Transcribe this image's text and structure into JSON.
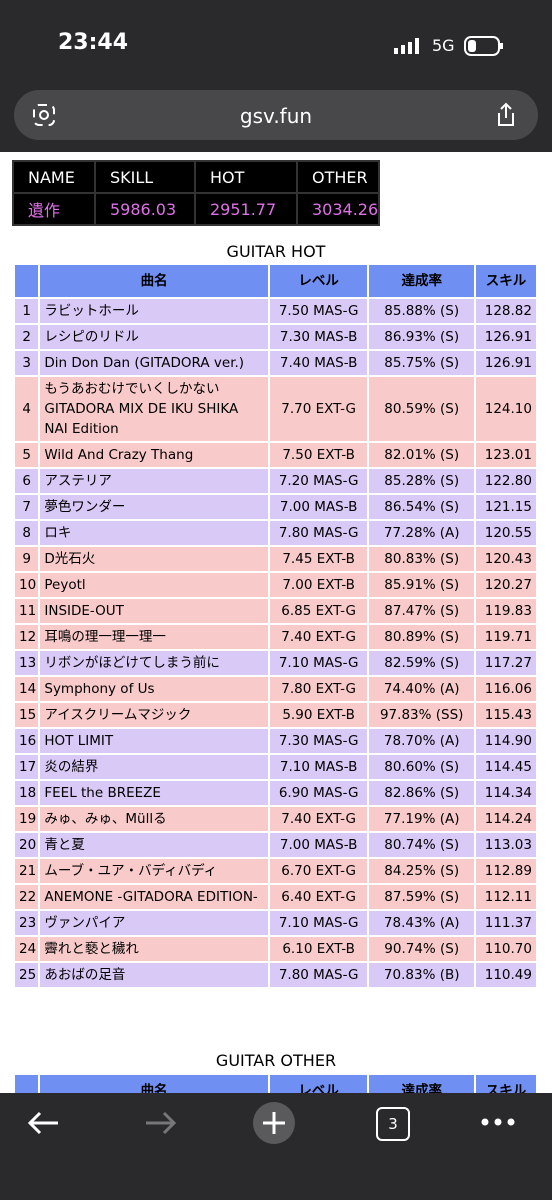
{
  "status": {
    "time": "23:44",
    "network": "5G"
  },
  "browser": {
    "url": "gsv.fun",
    "tabs": "3"
  },
  "summary": {
    "headers": [
      "NAME",
      "SKILL",
      "HOT",
      "OTHER"
    ],
    "values": [
      "遺作",
      "5986.03",
      "2951.77",
      "3034.26"
    ]
  },
  "sections": [
    {
      "title": "GUITAR HOT",
      "headers": [
        "",
        "曲名",
        "レベル",
        "達成率",
        "スキル"
      ],
      "rows": [
        {
          "no": "1",
          "name": "ラビットホール",
          "level": "7.50 MAS-G",
          "rate": "85.88% (S)",
          "skill": "128.82",
          "color": "#d9c9f7"
        },
        {
          "no": "2",
          "name": "レシピのリドル",
          "level": "7.30 MAS-B",
          "rate": "86.93% (S)",
          "skill": "126.91",
          "color": "#d9c9f7"
        },
        {
          "no": "3",
          "name": "Din Don Dan (GITADORA ver.)",
          "level": "7.40 MAS-B",
          "rate": "85.75% (S)",
          "skill": "126.91",
          "color": "#d9c9f7"
        },
        {
          "no": "4",
          "name": "もうあおむけでいくしかない GITADORA MIX DE IKU SHIKA NAI Edition",
          "level": "7.70 EXT-G",
          "rate": "80.59% (S)",
          "skill": "124.10",
          "color": "#f9caca"
        },
        {
          "no": "5",
          "name": "Wild And Crazy Thang",
          "level": "7.50 EXT-B",
          "rate": "82.01% (S)",
          "skill": "123.01",
          "color": "#f9caca"
        },
        {
          "no": "6",
          "name": "アステリア",
          "level": "7.20 MAS-G",
          "rate": "85.28% (S)",
          "skill": "122.80",
          "color": "#d9c9f7"
        },
        {
          "no": "7",
          "name": "夢色ワンダー",
          "level": "7.00 MAS-B",
          "rate": "86.54% (S)",
          "skill": "121.15",
          "color": "#d9c9f7"
        },
        {
          "no": "8",
          "name": "ロキ",
          "level": "7.80 MAS-G",
          "rate": "77.28% (A)",
          "skill": "120.55",
          "color": "#d9c9f7"
        },
        {
          "no": "9",
          "name": "D光石火",
          "level": "7.45 EXT-B",
          "rate": "80.83% (S)",
          "skill": "120.43",
          "color": "#f9caca"
        },
        {
          "no": "10",
          "name": "Peyotl",
          "level": "7.00 EXT-B",
          "rate": "85.91% (S)",
          "skill": "120.27",
          "color": "#f9caca"
        },
        {
          "no": "11",
          "name": "INSIDE-OUT",
          "level": "6.85 EXT-G",
          "rate": "87.47% (S)",
          "skill": "119.83",
          "color": "#f9caca"
        },
        {
          "no": "12",
          "name": "耳鳴の理一理一理一",
          "level": "7.40 EXT-G",
          "rate": "80.89% (S)",
          "skill": "119.71",
          "color": "#f9caca"
        },
        {
          "no": "13",
          "name": "リボンがほどけてしまう前に",
          "level": "7.10 MAS-G",
          "rate": "82.59% (S)",
          "skill": "117.27",
          "color": "#d9c9f7"
        },
        {
          "no": "14",
          "name": "Symphony of Us",
          "level": "7.80 EXT-G",
          "rate": "74.40% (A)",
          "skill": "116.06",
          "color": "#f9caca"
        },
        {
          "no": "15",
          "name": "アイスクリームマジック",
          "level": "5.90 EXT-B",
          "rate": "97.83% (SS)",
          "skill": "115.43",
          "color": "#f9caca"
        },
        {
          "no": "16",
          "name": "HOT LIMIT",
          "level": "7.30 MAS-G",
          "rate": "78.70% (A)",
          "skill": "114.90",
          "color": "#d9c9f7"
        },
        {
          "no": "17",
          "name": "炎の結界",
          "level": "7.10 MAS-B",
          "rate": "80.60% (S)",
          "skill": "114.45",
          "color": "#d9c9f7"
        },
        {
          "no": "18",
          "name": "FEEL the BREEZE",
          "level": "6.90 MAS-G",
          "rate": "82.86% (S)",
          "skill": "114.34",
          "color": "#d9c9f7"
        },
        {
          "no": "19",
          "name": "みゅ、みゅ、Müllる",
          "level": "7.40 EXT-G",
          "rate": "77.19% (A)",
          "skill": "114.24",
          "color": "#f9caca"
        },
        {
          "no": "20",
          "name": "青と夏",
          "level": "7.00 MAS-B",
          "rate": "80.74% (S)",
          "skill": "113.03",
          "color": "#d9c9f7"
        },
        {
          "no": "21",
          "name": "ムーブ・ユア・バディバディ",
          "level": "6.70 EXT-G",
          "rate": "84.25% (S)",
          "skill": "112.89",
          "color": "#f9caca"
        },
        {
          "no": "22",
          "name": "ANEMONE -GITADORA EDITION-",
          "level": "6.40 EXT-G",
          "rate": "87.59% (S)",
          "skill": "112.11",
          "color": "#f9caca"
        },
        {
          "no": "23",
          "name": "ヴァンパイア",
          "level": "7.10 MAS-G",
          "rate": "78.43% (A)",
          "skill": "111.37",
          "color": "#d9c9f7"
        },
        {
          "no": "24",
          "name": "霽れと褻と穢れ",
          "level": "6.10 EXT-B",
          "rate": "90.74% (S)",
          "skill": "110.70",
          "color": "#f9caca"
        },
        {
          "no": "25",
          "name": "あおばの足音",
          "level": "7.80 MAS-G",
          "rate": "70.83% (B)",
          "skill": "110.49",
          "color": "#d9c9f7"
        }
      ]
    },
    {
      "title": "GUITAR OTHER",
      "headers": [
        "",
        "曲名",
        "レベル",
        "達成率",
        "スキル"
      ],
      "rows": []
    }
  ]
}
